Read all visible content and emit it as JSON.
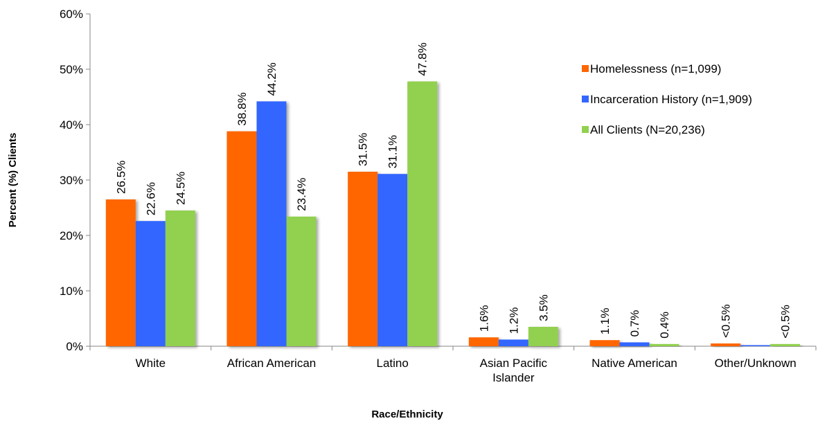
{
  "chart_data": {
    "type": "bar",
    "xlabel": "Race/Ethnicity",
    "ylabel": "Percent (%) Clients",
    "ylim": [
      0,
      60
    ],
    "ytick_step": 10,
    "ytick_labels": [
      "0%",
      "10%",
      "20%",
      "30%",
      "40%",
      "50%",
      "60%"
    ],
    "grid": false,
    "legend_position": "top-right",
    "categories": [
      [
        "White"
      ],
      [
        "African American"
      ],
      [
        "Latino"
      ],
      [
        "Asian Pacific",
        "Islander"
      ],
      [
        "Native American"
      ],
      [
        "Other/Unknown"
      ]
    ],
    "series": [
      {
        "name": "Homelessness (n=1,099)",
        "color": "#ff6600",
        "values": [
          26.5,
          38.8,
          31.5,
          1.6,
          1.1,
          0.5
        ],
        "labels": [
          "26.5%",
          "38.8%",
          "31.5%",
          "1.6%",
          "1.1%",
          "<0.5%"
        ]
      },
      {
        "name": "Incarceration History (n=1,909)",
        "color": "#3366ff",
        "values": [
          22.6,
          44.2,
          31.1,
          1.2,
          0.7,
          0.2
        ],
        "labels": [
          "22.6%",
          "44.2%",
          "31.1%",
          "1.2%",
          "0.7%",
          ""
        ]
      },
      {
        "name": "All Clients (N=20,236)",
        "color": "#92d050",
        "values": [
          24.5,
          23.4,
          47.8,
          3.5,
          0.4,
          0.4
        ],
        "labels": [
          "24.5%",
          "23.4%",
          "47.8%",
          "3.5%",
          "0.4%",
          "<0.5%"
        ]
      }
    ]
  }
}
